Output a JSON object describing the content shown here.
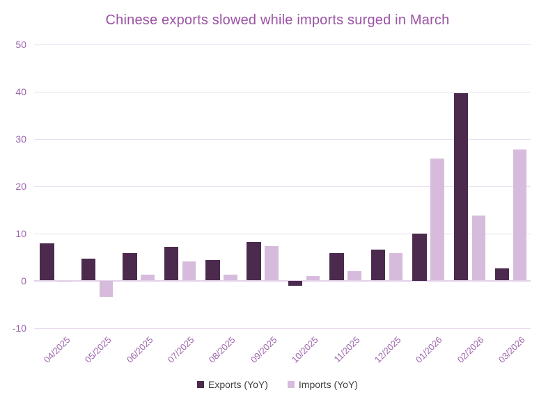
{
  "title": "Chinese exports slowed while imports surged in March",
  "colors": {
    "exports_bar": "#4b2a4e",
    "imports_bar": "#d7bbdc",
    "gridline": "#e9dcf0",
    "zero_line": "#e3d2ec",
    "title_text": "#9b53a4",
    "tick_text": "#9c64ab",
    "legend_text": "#3f3f3f",
    "background": "#ffffff"
  },
  "chart_data": {
    "type": "bar",
    "title": "Chinese exports slowed while imports surged in March",
    "categories": [
      "04/2025",
      "05/2025",
      "06/2025",
      "07/2025",
      "08/2025",
      "09/2025",
      "10/2025",
      "11/2025",
      "12/2025",
      "01/2026",
      "02/2026",
      "03/2026"
    ],
    "series": [
      {
        "name": "Exports (YoY)",
        "color": "#4b2a4e",
        "values": [
          7.9,
          4.6,
          5.8,
          7.1,
          4.4,
          8.2,
          -1.1,
          5.8,
          6.6,
          10.0,
          39.7,
          2.6
        ]
      },
      {
        "name": "Imports (YoY)",
        "color": "#d7bbdc",
        "values": [
          -0.2,
          -3.4,
          1.2,
          4.1,
          1.3,
          7.3,
          0.9,
          2.0,
          5.8,
          25.8,
          13.8,
          27.7
        ]
      }
    ],
    "xlabel": "",
    "ylabel": "",
    "ylim": [
      -10,
      50
    ],
    "yticks": [
      50,
      40,
      30,
      20,
      10,
      0,
      -10
    ],
    "grid": true,
    "legend_position": "bottom",
    "x_tick_rotation_deg": 45
  }
}
